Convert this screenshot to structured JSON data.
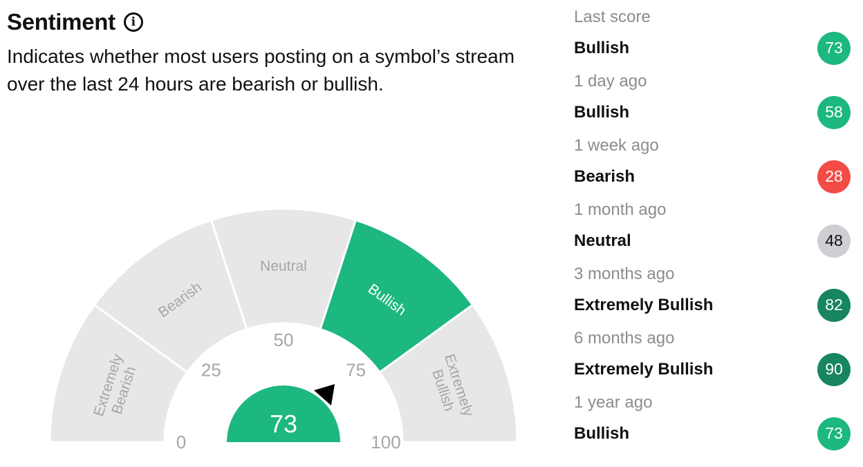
{
  "header": {
    "title": "Sentiment",
    "info_icon": "info-circle-icon",
    "description_line1": "Indicates whether most users posting on a symbol’s stream",
    "description_line2": "over the last 24 hours are bearish or bullish."
  },
  "gauge": {
    "score": "73",
    "score_value": 73,
    "segments": [
      {
        "label_line1": "Extremely",
        "label_line2": "Bearish",
        "active": false
      },
      {
        "label_line1": "Bearish",
        "label_line2": "",
        "active": false
      },
      {
        "label_line1": "Neutral",
        "label_line2": "",
        "active": false
      },
      {
        "label_line1": "Bullish",
        "label_line2": "",
        "active": true
      },
      {
        "label_line1": "Extremely",
        "label_line2": "Bullish",
        "active": false
      }
    ],
    "ticks": [
      "0",
      "25",
      "50",
      "75",
      "100"
    ],
    "colors": {
      "active": "#1db780",
      "inactive": "#e7e7ea",
      "active_text": "#ffffff",
      "inactive_text": "#a6a6a6",
      "needle": "#000000"
    }
  },
  "history": [
    {
      "period": "Last score",
      "label": "Bullish",
      "score": "73",
      "color": "#1db780",
      "text_color": "#ffffff"
    },
    {
      "period": "1 day ago",
      "label": "Bullish",
      "score": "58",
      "color": "#1db780",
      "text_color": "#ffffff"
    },
    {
      "period": "1 week ago",
      "label": "Bearish",
      "score": "28",
      "color": "#f34b45",
      "text_color": "#ffffff"
    },
    {
      "period": "1 month ago",
      "label": "Neutral",
      "score": "48",
      "color": "#cfcfd3",
      "text_color": "#111111"
    },
    {
      "period": "3 months ago",
      "label": "Extremely Bullish",
      "score": "82",
      "color": "#17855e",
      "text_color": "#ffffff"
    },
    {
      "period": "6 months ago",
      "label": "Extremely Bullish",
      "score": "90",
      "color": "#17855e",
      "text_color": "#ffffff"
    },
    {
      "period": "1 year ago",
      "label": "Bullish",
      "score": "73",
      "color": "#1db780",
      "text_color": "#ffffff"
    }
  ]
}
